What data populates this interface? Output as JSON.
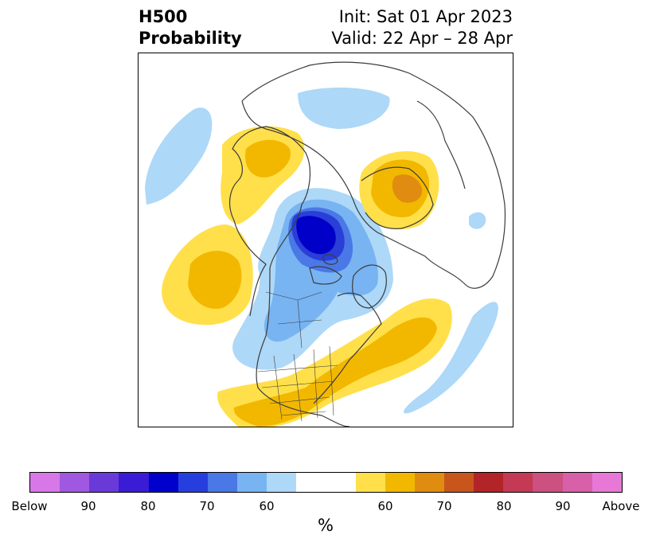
{
  "title": {
    "left_line1": "H500",
    "left_line2": "Probability",
    "right_line1": "Init: Sat 01 Apr 2023",
    "right_line2": "Valid: 22 Apr – 28 Apr"
  },
  "map": {
    "projection": "north polar stereographic",
    "variable": "500 hPa height anomaly probability",
    "colors": {
      "below_60": "#add8f8",
      "below_70": "#78b4f2",
      "below_80": "#4a78e6",
      "below_90": "#2a3ed8",
      "below_max": "#0000c8",
      "above_60": "#ffe04a",
      "above_70": "#f2b800",
      "above_80": "#e08c10",
      "above_90": "#c8641c",
      "land_outline": "#3c3c3c"
    }
  },
  "colorbar": {
    "segments": [
      "#d878e8",
      "#a058e0",
      "#6a3ad8",
      "#3a1cd6",
      "#0000cc",
      "#263ede",
      "#4a78e6",
      "#78b4f2",
      "#add8f8",
      "#ffffff",
      "#ffffff",
      "#ffe04a",
      "#f2b800",
      "#e08c10",
      "#c8561c",
      "#b22428",
      "#c43a54",
      "#cc5080",
      "#d860a8",
      "#e878d8"
    ],
    "tick_labels": [
      "Below",
      "90",
      "80",
      "70",
      "60",
      "60",
      "70",
      "80",
      "90",
      "Above"
    ],
    "unit_label": "%"
  }
}
